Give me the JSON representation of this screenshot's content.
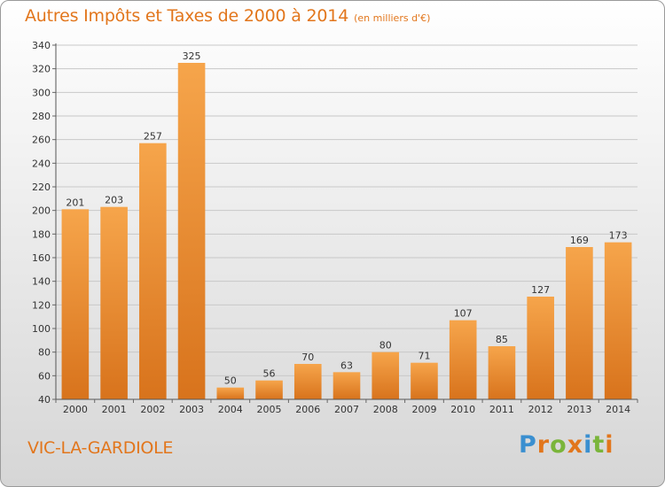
{
  "title": "Autres Impôts et Taxes de 2000 à 2014",
  "subtitle": "(en milliers d'€)",
  "commune": "VIC-LA-GARDIOLE",
  "logo": "Proxiti",
  "colors": {
    "bar_top": "#f6a54b",
    "bar_bottom": "#d8731c",
    "accent": "#e2761c",
    "grid": "#c8c8c8"
  },
  "chart_data": {
    "type": "bar",
    "categories": [
      "2000",
      "2001",
      "2002",
      "2003",
      "2004",
      "2005",
      "2006",
      "2007",
      "2008",
      "2009",
      "2010",
      "2011",
      "2012",
      "2013",
      "2014"
    ],
    "values": [
      201,
      203,
      257,
      325,
      50,
      56,
      70,
      63,
      80,
      71,
      107,
      85,
      127,
      169,
      173
    ],
    "ylim": [
      40,
      340
    ],
    "yticks": [
      40,
      60,
      80,
      100,
      120,
      140,
      160,
      180,
      200,
      220,
      240,
      260,
      280,
      300,
      320,
      340
    ],
    "grid": true,
    "legend": "none"
  }
}
